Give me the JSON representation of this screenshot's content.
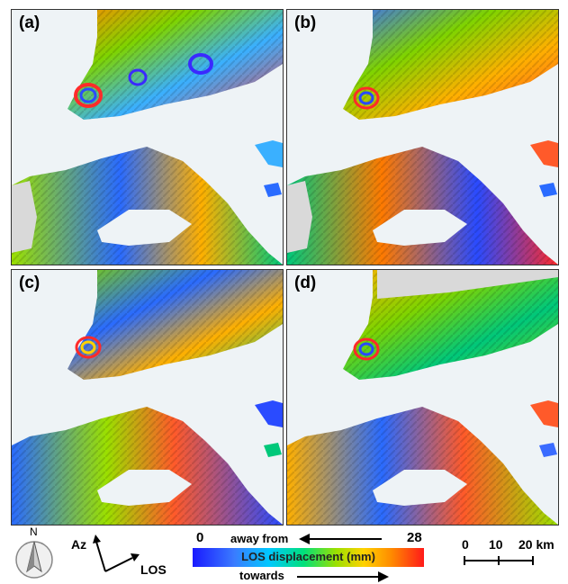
{
  "panels": [
    {
      "id": "a",
      "label": "(a)"
    },
    {
      "id": "b",
      "label": "(b)"
    },
    {
      "id": "c",
      "label": "(c)"
    },
    {
      "id": "d",
      "label": "(d)"
    }
  ],
  "compass": {
    "north_label": "N"
  },
  "geometry_arrows": {
    "azimuth_label": "Az",
    "los_label": "LOS"
  },
  "colorbar": {
    "min_label": "0",
    "max_label": "28",
    "title": "LOS displacement (mm)",
    "away_label": "away from",
    "towards_label": "towards",
    "colors": [
      "#1a1aff",
      "#00c8ff",
      "#00e07a",
      "#ffd200",
      "#ff8a00",
      "#ff1a1a"
    ]
  },
  "scale_bar": {
    "ticks": [
      "0",
      "10",
      "20 km"
    ]
  },
  "colors": {
    "sea": "#eef3f6",
    "hillshade": "#d9d9d9"
  }
}
